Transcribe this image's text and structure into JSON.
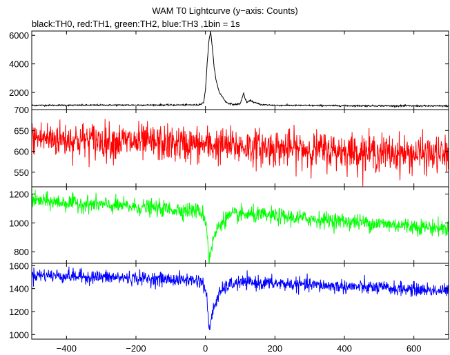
{
  "title": "WAM T0 Lightcurve (y−axis: Counts)",
  "subtitle": "black:TH0, red:TH1, green:TH2, blue:TH3 ,1bin = 1s",
  "chart_data": {
    "type": "line",
    "title": "WAM T0 Lightcurve (y−axis: Counts)",
    "subtitle": "black:TH0, red:TH1, green:TH2, blue:TH3 ,1bin = 1s",
    "xlim": [
      -500,
      700
    ],
    "x_ticks": [
      -400,
      -200,
      0,
      200,
      400,
      600
    ],
    "x_tick_labels": [
      "−400",
      "−200",
      "0",
      "200",
      "400",
      "600"
    ],
    "bin_seconds": 1,
    "panels": [
      {
        "name": "TH0",
        "color": "#000000",
        "ylim": [
          800,
          6300
        ],
        "y_ticks": [
          2000,
          4000,
          6000
        ],
        "description_points": {
          "x": [
            -500,
            -20,
            -5,
            0,
            5,
            10,
            15,
            20,
            25,
            30,
            40,
            60,
            80,
            100,
            110,
            115,
            120,
            130,
            140,
            160,
            200,
            400,
            700
          ],
          "y": [
            1100,
            1130,
            1300,
            2200,
            4100,
            5600,
            6300,
            5100,
            3800,
            2900,
            2000,
            1300,
            1150,
            1200,
            1950,
            1500,
            1300,
            1450,
            1300,
            1150,
            1100,
            1070,
            1050
          ]
        }
      },
      {
        "name": "TH1",
        "color": "#ff0000",
        "ylim": [
          515,
          700
        ],
        "y_ticks": [
          550,
          600,
          650,
          700
        ],
        "trend": {
          "x": [
            -500,
            0,
            700
          ],
          "y": [
            632,
            615,
            590
          ]
        },
        "noise_sd": 22
      },
      {
        "name": "TH2",
        "color": "#00ff00",
        "ylim": [
          720,
          1250
        ],
        "y_ticks": [
          800,
          1000,
          1200
        ],
        "trend": {
          "x": [
            -500,
            0,
            700
          ],
          "y": [
            1155,
            1080,
            960
          ]
        },
        "dip": {
          "x": 10,
          "depth": 350
        },
        "noise_sd": 28
      },
      {
        "name": "TH3",
        "color": "#0000ff",
        "ylim": [
          960,
          1620
        ],
        "y_ticks": [
          1000,
          1200,
          1400,
          1600
        ],
        "trend": {
          "x": [
            -500,
            0,
            700
          ],
          "y": [
            1520,
            1470,
            1380
          ]
        },
        "dip": {
          "x": 10,
          "depth": 450
        },
        "noise_sd": 30
      }
    ]
  }
}
